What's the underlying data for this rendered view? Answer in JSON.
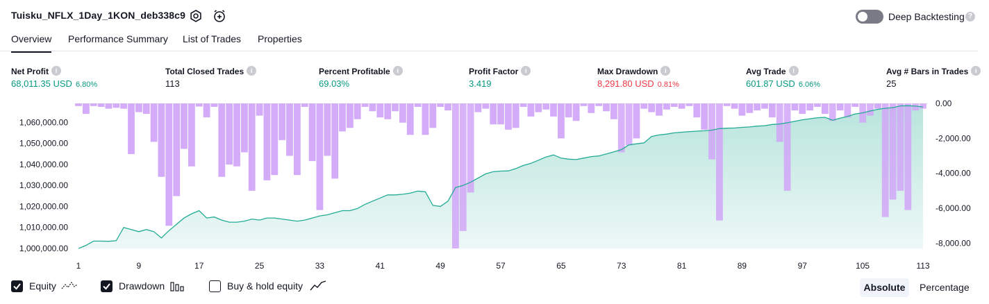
{
  "header": {
    "title": "Tuisku_NFLX_1Day_1KON_deb338c9",
    "settings_icon": "settings-icon",
    "alert_icon": "add-alert-icon",
    "deep_backtesting_label": "Deep Backtesting",
    "deep_backtesting_enabled": false,
    "help_glyph": "?"
  },
  "tabs": [
    {
      "label": "Overview",
      "active": true
    },
    {
      "label": "Performance Summary",
      "active": false
    },
    {
      "label": "List of Trades",
      "active": false
    },
    {
      "label": "Properties",
      "active": false
    }
  ],
  "metrics": [
    {
      "label": "Net Profit",
      "value": "68,011.35 USD",
      "pct": "6.80%",
      "color": "#089981"
    },
    {
      "label": "Total Closed Trades",
      "value": "113",
      "pct": "",
      "color": "#131722"
    },
    {
      "label": "Percent Profitable",
      "value": "69.03%",
      "pct": "",
      "color": "#089981"
    },
    {
      "label": "Profit Factor",
      "value": "3.419",
      "pct": "",
      "color": "#089981"
    },
    {
      "label": "Max Drawdown",
      "value": "8,291.80 USD",
      "pct": "0.81%",
      "color": "#f23645"
    },
    {
      "label": "Avg Trade",
      "value": "601.87 USD",
      "pct": "6.06%",
      "color": "#089981"
    },
    {
      "label": "Avg # Bars in Trades",
      "value": "25",
      "pct": "",
      "color": "#131722"
    }
  ],
  "chart_data": {
    "type": "area",
    "series": [
      {
        "name": "Equity",
        "axis": "left",
        "color": "#22ab94",
        "x": [
          1,
          2,
          3,
          4,
          5,
          6,
          7,
          8,
          9,
          10,
          11,
          12,
          13,
          14,
          15,
          16,
          17,
          18,
          19,
          20,
          21,
          22,
          23,
          24,
          25,
          26,
          27,
          28,
          29,
          30,
          31,
          32,
          33,
          34,
          35,
          36,
          37,
          38,
          39,
          40,
          41,
          42,
          43,
          44,
          45,
          46,
          47,
          48,
          49,
          50,
          51,
          52,
          53,
          54,
          55,
          56,
          57,
          58,
          59,
          60,
          61,
          62,
          63,
          64,
          65,
          66,
          67,
          68,
          69,
          70,
          71,
          72,
          73,
          74,
          75,
          76,
          77,
          78,
          79,
          80,
          81,
          82,
          83,
          84,
          85,
          86,
          87,
          88,
          89,
          90,
          91,
          92,
          93,
          94,
          95,
          96,
          97,
          98,
          99,
          100,
          101,
          102,
          103,
          104,
          105,
          106,
          107,
          108,
          109,
          110,
          111,
          112,
          113
        ],
        "values": [
          1000000,
          1001500,
          1003500,
          1003500,
          1003400,
          1003700,
          1010000,
          1009000,
          1008000,
          1009000,
          1008000,
          1005000,
          1008500,
          1011500,
          1014500,
          1016500,
          1018000,
          1014500,
          1015000,
          1013500,
          1012500,
          1012500,
          1013000,
          1014000,
          1013500,
          1014500,
          1014500,
          1014000,
          1013500,
          1013000,
          1013500,
          1014500,
          1015500,
          1016000,
          1017000,
          1018000,
          1018000,
          1019000,
          1021000,
          1022500,
          1024000,
          1025500,
          1025500,
          1025800,
          1026300,
          1027300,
          1027000,
          1020500,
          1020000,
          1022500,
          1029000,
          1030000,
          1031500,
          1033500,
          1035500,
          1036500,
          1036800,
          1036900,
          1038000,
          1039500,
          1040500,
          1042000,
          1043500,
          1044500,
          1043000,
          1042500,
          1042300,
          1043000,
          1043700,
          1044000,
          1045000,
          1046000,
          1047000,
          1049300,
          1049800,
          1050200,
          1053300,
          1054000,
          1054400,
          1055000,
          1055300,
          1055600,
          1055800,
          1056000,
          1056300,
          1057000,
          1057200,
          1057300,
          1057600,
          1057800,
          1058200,
          1058400,
          1059000,
          1059200,
          1059800,
          1060500,
          1061200,
          1061700,
          1062200,
          1062400,
          1061000,
          1062000,
          1062800,
          1064000,
          1064500,
          1065400,
          1066200,
          1066700,
          1067000,
          1067800,
          1067900,
          1067700,
          1067300
        ]
      },
      {
        "name": "Drawdown",
        "axis": "right",
        "color": "#d1a6f8",
        "x": [
          1,
          2,
          3,
          4,
          5,
          6,
          7,
          8,
          9,
          10,
          11,
          12,
          13,
          14,
          15,
          16,
          17,
          18,
          19,
          20,
          21,
          22,
          23,
          24,
          25,
          26,
          27,
          28,
          29,
          30,
          31,
          32,
          33,
          34,
          35,
          36,
          37,
          38,
          39,
          40,
          41,
          42,
          43,
          44,
          45,
          46,
          47,
          48,
          49,
          50,
          51,
          52,
          53,
          54,
          55,
          56,
          57,
          58,
          59,
          60,
          61,
          62,
          63,
          64,
          65,
          66,
          67,
          68,
          69,
          70,
          71,
          72,
          73,
          74,
          75,
          76,
          77,
          78,
          79,
          80,
          81,
          82,
          83,
          84,
          85,
          86,
          87,
          88,
          89,
          90,
          91,
          92,
          93,
          94,
          95,
          96,
          97,
          98,
          99,
          100,
          101,
          102,
          103,
          104,
          105,
          106,
          107,
          108,
          109,
          110,
          111,
          112,
          113
        ],
        "values": [
          -150,
          -600,
          -150,
          -200,
          -300,
          -250,
          -300,
          -2900,
          -500,
          -600,
          -2200,
          -4200,
          -7000,
          -5300,
          -2600,
          -3600,
          -180,
          -800,
          -200,
          -4200,
          -3500,
          -3600,
          -2800,
          -5000,
          -700,
          -4400,
          -4100,
          -2100,
          -3000,
          -4100,
          -200,
          -3300,
          -6100,
          -3000,
          -4300,
          -1600,
          -1400,
          -900,
          -200,
          -450,
          -800,
          -900,
          -450,
          -1100,
          -1800,
          -200,
          -1800,
          -1400,
          -200,
          -400,
          -8300,
          -7300,
          -5100,
          -500,
          -300,
          -1200,
          -1200,
          -1500,
          -1400,
          -200,
          -750,
          -500,
          -350,
          -750,
          -2000,
          -800,
          -1000,
          -150,
          -550,
          -150,
          -450,
          -900,
          -2800,
          -2400,
          -2000,
          -300,
          -500,
          -700,
          -350,
          -200,
          -300,
          -150,
          -800,
          -1500,
          -3200,
          -6700,
          -150,
          -300,
          -700,
          -550,
          -400,
          -300,
          -800,
          -2200,
          -5000,
          -400,
          -600,
          -400,
          -200,
          -600,
          -1000,
          -400,
          -800,
          -200,
          -1100,
          -700,
          -300,
          -6500,
          -5500,
          -5000,
          -6100,
          -400,
          -300
        ],
        "bar_colors": {
          "normal": "#d1a6f8",
          "over_area": "#9aa9d5"
        }
      }
    ],
    "left_axis": {
      "ticks": [
        "1,000,000.00",
        "1,010,000.00",
        "1,020,000.00",
        "1,030,000.00",
        "1,040,000.00",
        "1,050,000.00",
        "1,060,000.00"
      ],
      "range": [
        1000000,
        1069000
      ]
    },
    "right_axis": {
      "ticks": [
        "0.00",
        "-2,000.00",
        "-4,000.00",
        "-6,000.00",
        "-8,000.00"
      ],
      "range": [
        -8300,
        0
      ]
    },
    "x_ticks": [
      "1",
      "9",
      "17",
      "25",
      "33",
      "41",
      "49",
      "57",
      "65",
      "73",
      "81",
      "89",
      "97",
      "105",
      "113"
    ],
    "grid": false
  },
  "legend": {
    "items": [
      {
        "label": "Equity",
        "checked": true,
        "icon": "equity-line-icon"
      },
      {
        "label": "Drawdown",
        "checked": true,
        "icon": "drawdown-bars-icon"
      },
      {
        "label": "Buy & hold equity",
        "checked": false,
        "icon": "buy-hold-line-icon"
      }
    ],
    "modes": {
      "absolute": "Absolute",
      "percentage": "Percentage",
      "selected": "Absolute"
    }
  }
}
